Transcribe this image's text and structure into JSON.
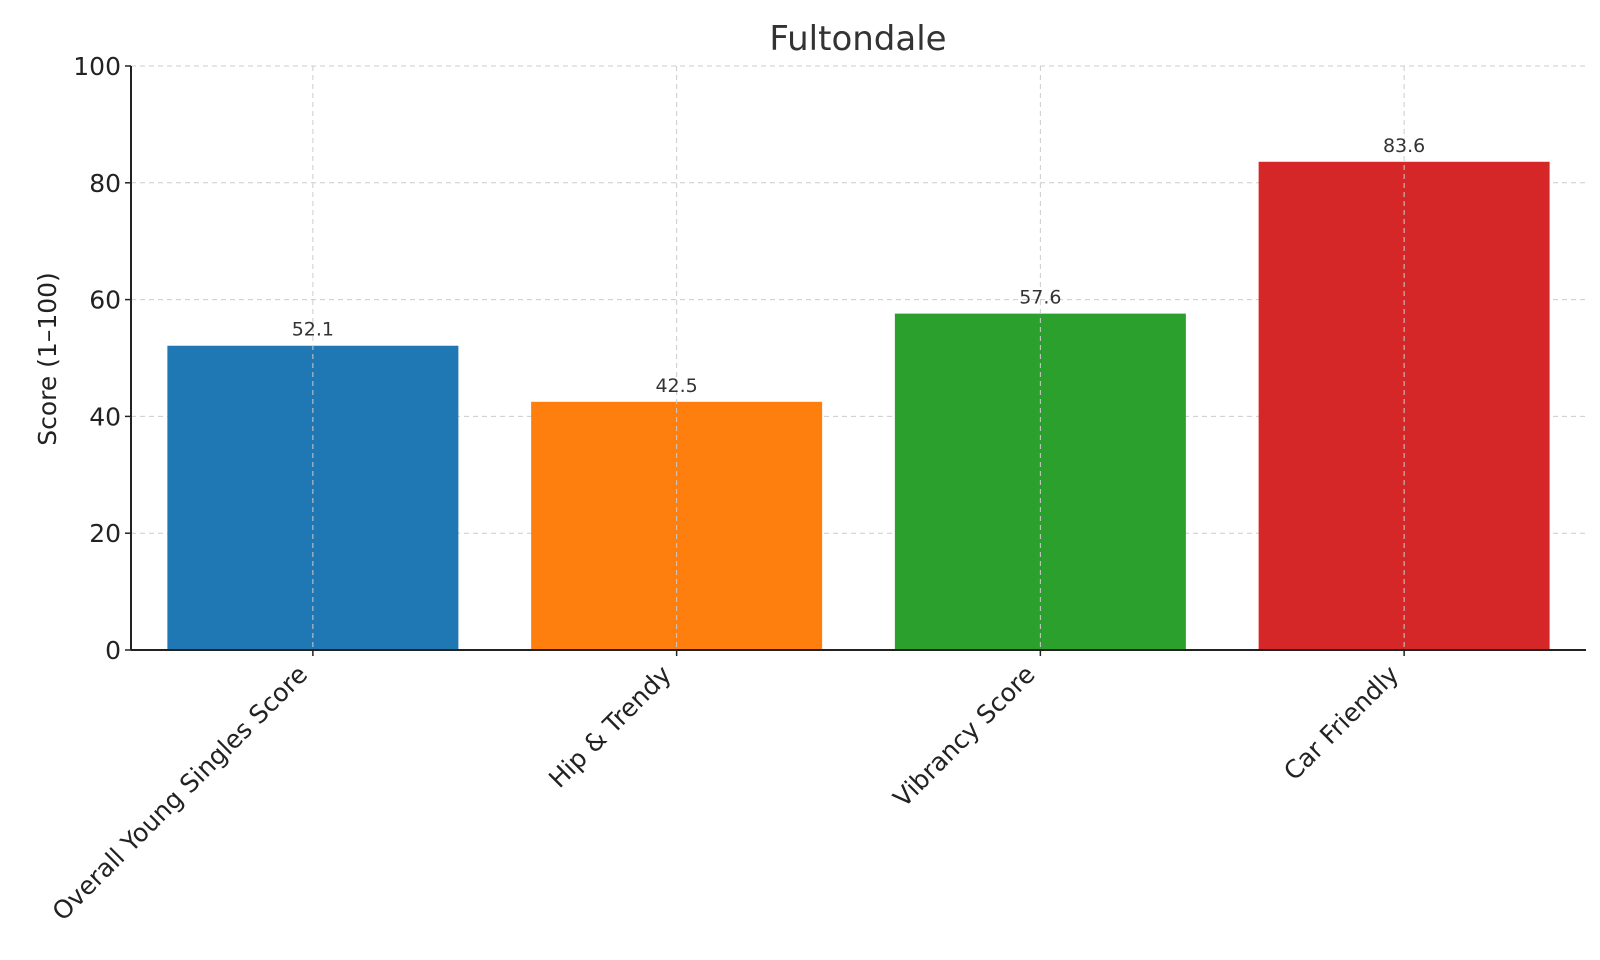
{
  "chart_data": {
    "type": "bar",
    "title": "Fultondale",
    "xlabel": "",
    "ylabel": "Score (1–100)",
    "categories": [
      "Overall Young Singles Score",
      "Hip & Trendy",
      "Vibrancy Score",
      "Car Friendly"
    ],
    "values": [
      52.1,
      42.5,
      57.6,
      83.6
    ],
    "value_labels": [
      "52.1",
      "42.5",
      "57.6",
      "83.6"
    ],
    "colors": [
      "#1f77b4",
      "#ff7f0e",
      "#2ca02c",
      "#d62728"
    ],
    "ylim": [
      0,
      100
    ],
    "yticks": [
      0,
      20,
      40,
      60,
      80,
      100
    ],
    "grid": true,
    "legend": "none"
  }
}
